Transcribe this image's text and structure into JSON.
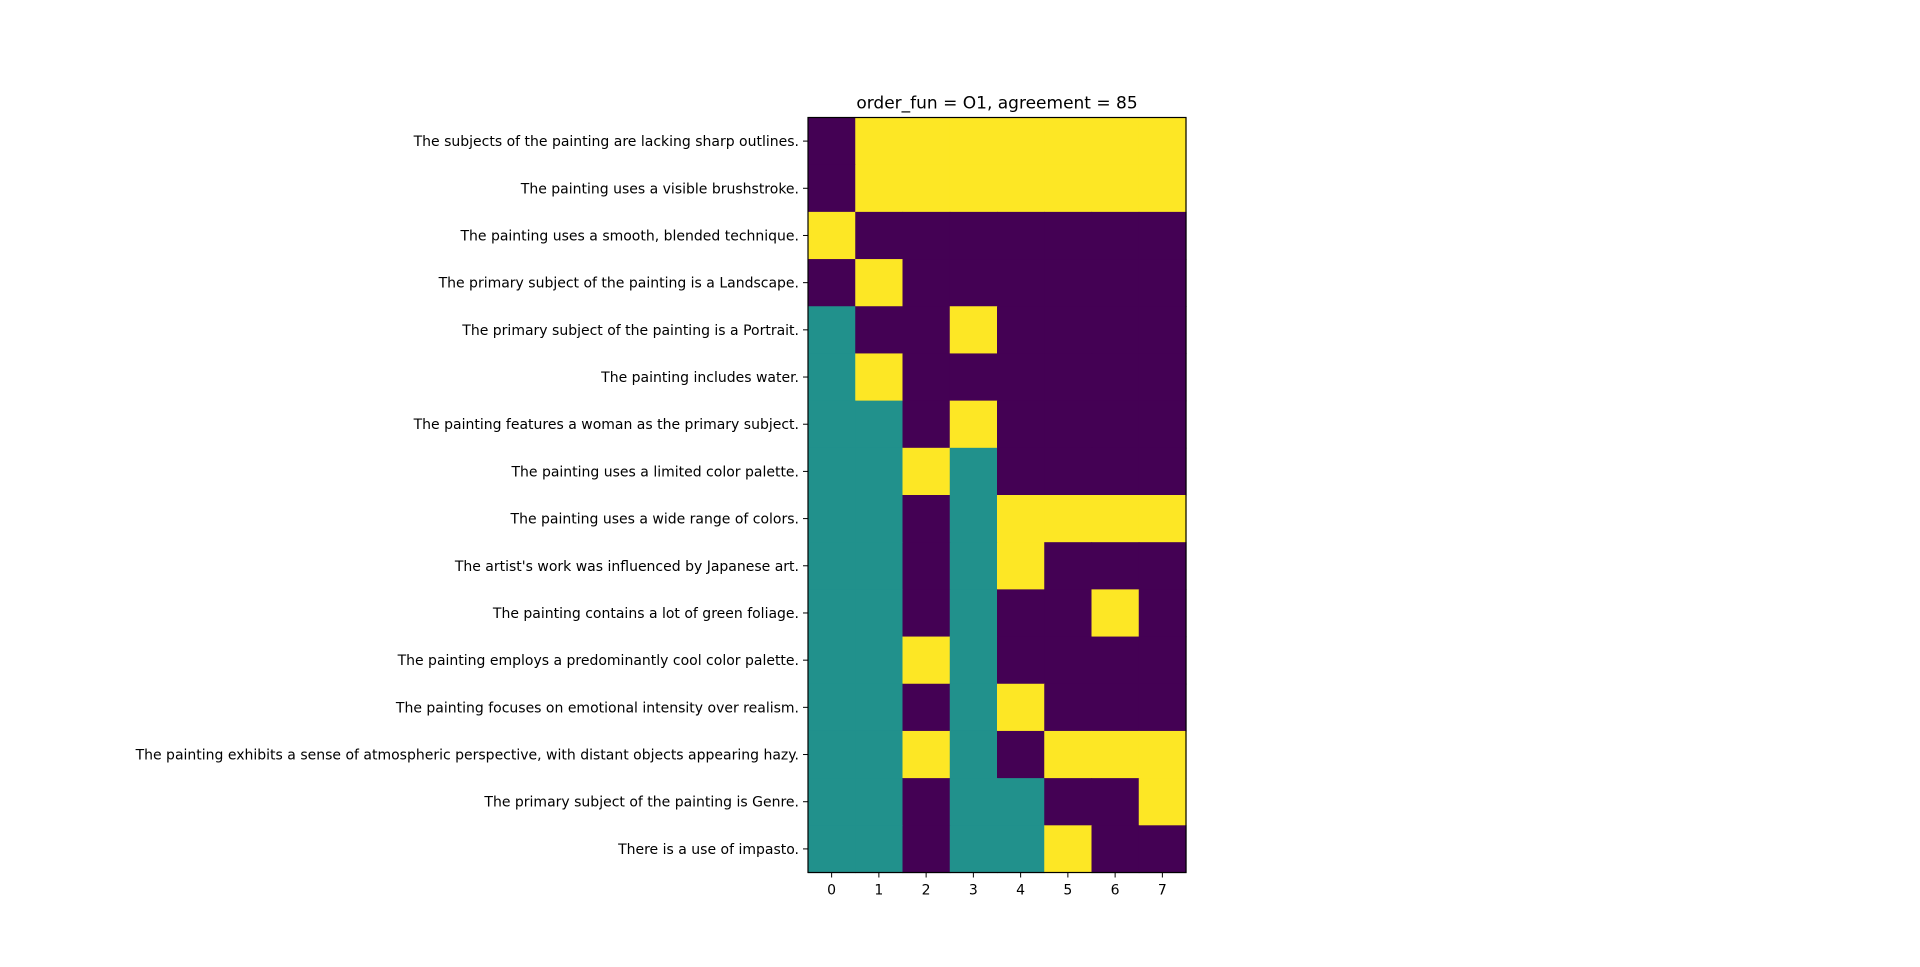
{
  "chart_data": {
    "type": "heatmap",
    "title": "order_fun = O1, agreement = 85",
    "x_ticks": [
      "0",
      "1",
      "2",
      "3",
      "4",
      "5",
      "6",
      "7"
    ],
    "y_labels": [
      "The subjects of the painting are lacking sharp outlines.",
      "The painting uses a visible brushstroke.",
      "The painting uses a smooth, blended technique.",
      "The primary subject of the painting is a Landscape.",
      "The primary subject of the painting is a Portrait.",
      "The painting includes water.",
      "The painting features a woman as the primary subject.",
      "The painting uses a limited color palette.",
      "The painting uses a wide range of colors.",
      "The artist's work was influenced by Japanese art.",
      "The painting contains a lot of green foliage.",
      "The painting employs a predominantly cool color palette.",
      "The painting focuses on emotional intensity over realism.",
      "The painting exhibits a sense of atmospheric perspective, with distant objects appearing hazy.",
      "The primary subject of the painting is Genre.",
      "There is a use of impasto."
    ],
    "values": [
      [
        0,
        1,
        1,
        1,
        1,
        1,
        1,
        1
      ],
      [
        0,
        1,
        1,
        1,
        1,
        1,
        1,
        1
      ],
      [
        1,
        0,
        0,
        0,
        0,
        0,
        0,
        0
      ],
      [
        0,
        1,
        0,
        0,
        0,
        0,
        0,
        0
      ],
      [
        0.5,
        0,
        0,
        1,
        0,
        0,
        0,
        0
      ],
      [
        0.5,
        1,
        0,
        0,
        0,
        0,
        0,
        0
      ],
      [
        0.5,
        0.5,
        0,
        1,
        0,
        0,
        0,
        0
      ],
      [
        0.5,
        0.5,
        1,
        0.5,
        0,
        0,
        0,
        0
      ],
      [
        0.5,
        0.5,
        0,
        0.5,
        1,
        1,
        1,
        1
      ],
      [
        0.5,
        0.5,
        0,
        0.5,
        1,
        0,
        0,
        0
      ],
      [
        0.5,
        0.5,
        0,
        0.5,
        0,
        0,
        1,
        0
      ],
      [
        0.5,
        0.5,
        1,
        0.5,
        0,
        0,
        0,
        0
      ],
      [
        0.5,
        0.5,
        0,
        0.5,
        1,
        0,
        0,
        0
      ],
      [
        0.5,
        0.5,
        1,
        0.5,
        0,
        1,
        1,
        1
      ],
      [
        0.5,
        0.5,
        0,
        0.5,
        0.5,
        0,
        0,
        1
      ],
      [
        0.5,
        0.5,
        0,
        0.5,
        0.5,
        1,
        0,
        0
      ]
    ],
    "colormap": {
      "0": "#440154",
      "0.5": "#21918c",
      "1": "#fde725"
    },
    "grid": false,
    "legend": "none"
  }
}
